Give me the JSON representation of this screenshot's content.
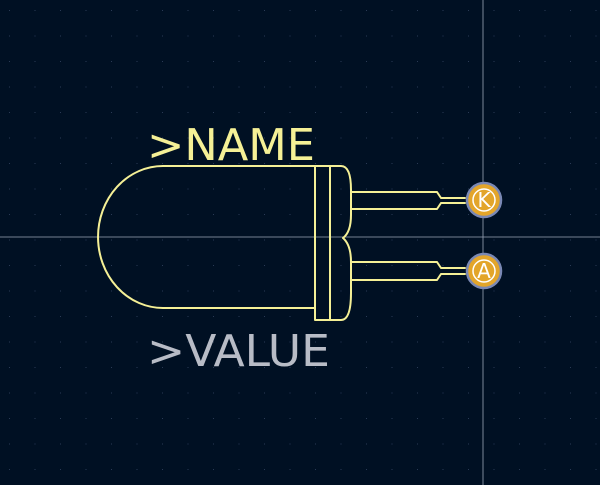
{
  "board": {
    "background_color": "#001023",
    "grid_dot_color": "#2a3a55",
    "crosshair_color": "#9aa6b8",
    "outline_color": "#f5f096",
    "value_text_color": "#b8bcc6",
    "pad_fill_color": "#e3a52a",
    "pad_ring_color": "#7a88b4",
    "pad_text_color": "#ffffff"
  },
  "labels": {
    "name": ">NAME",
    "value": ">VALUE"
  },
  "pads": [
    {
      "label": "K"
    },
    {
      "label": "A"
    }
  ]
}
